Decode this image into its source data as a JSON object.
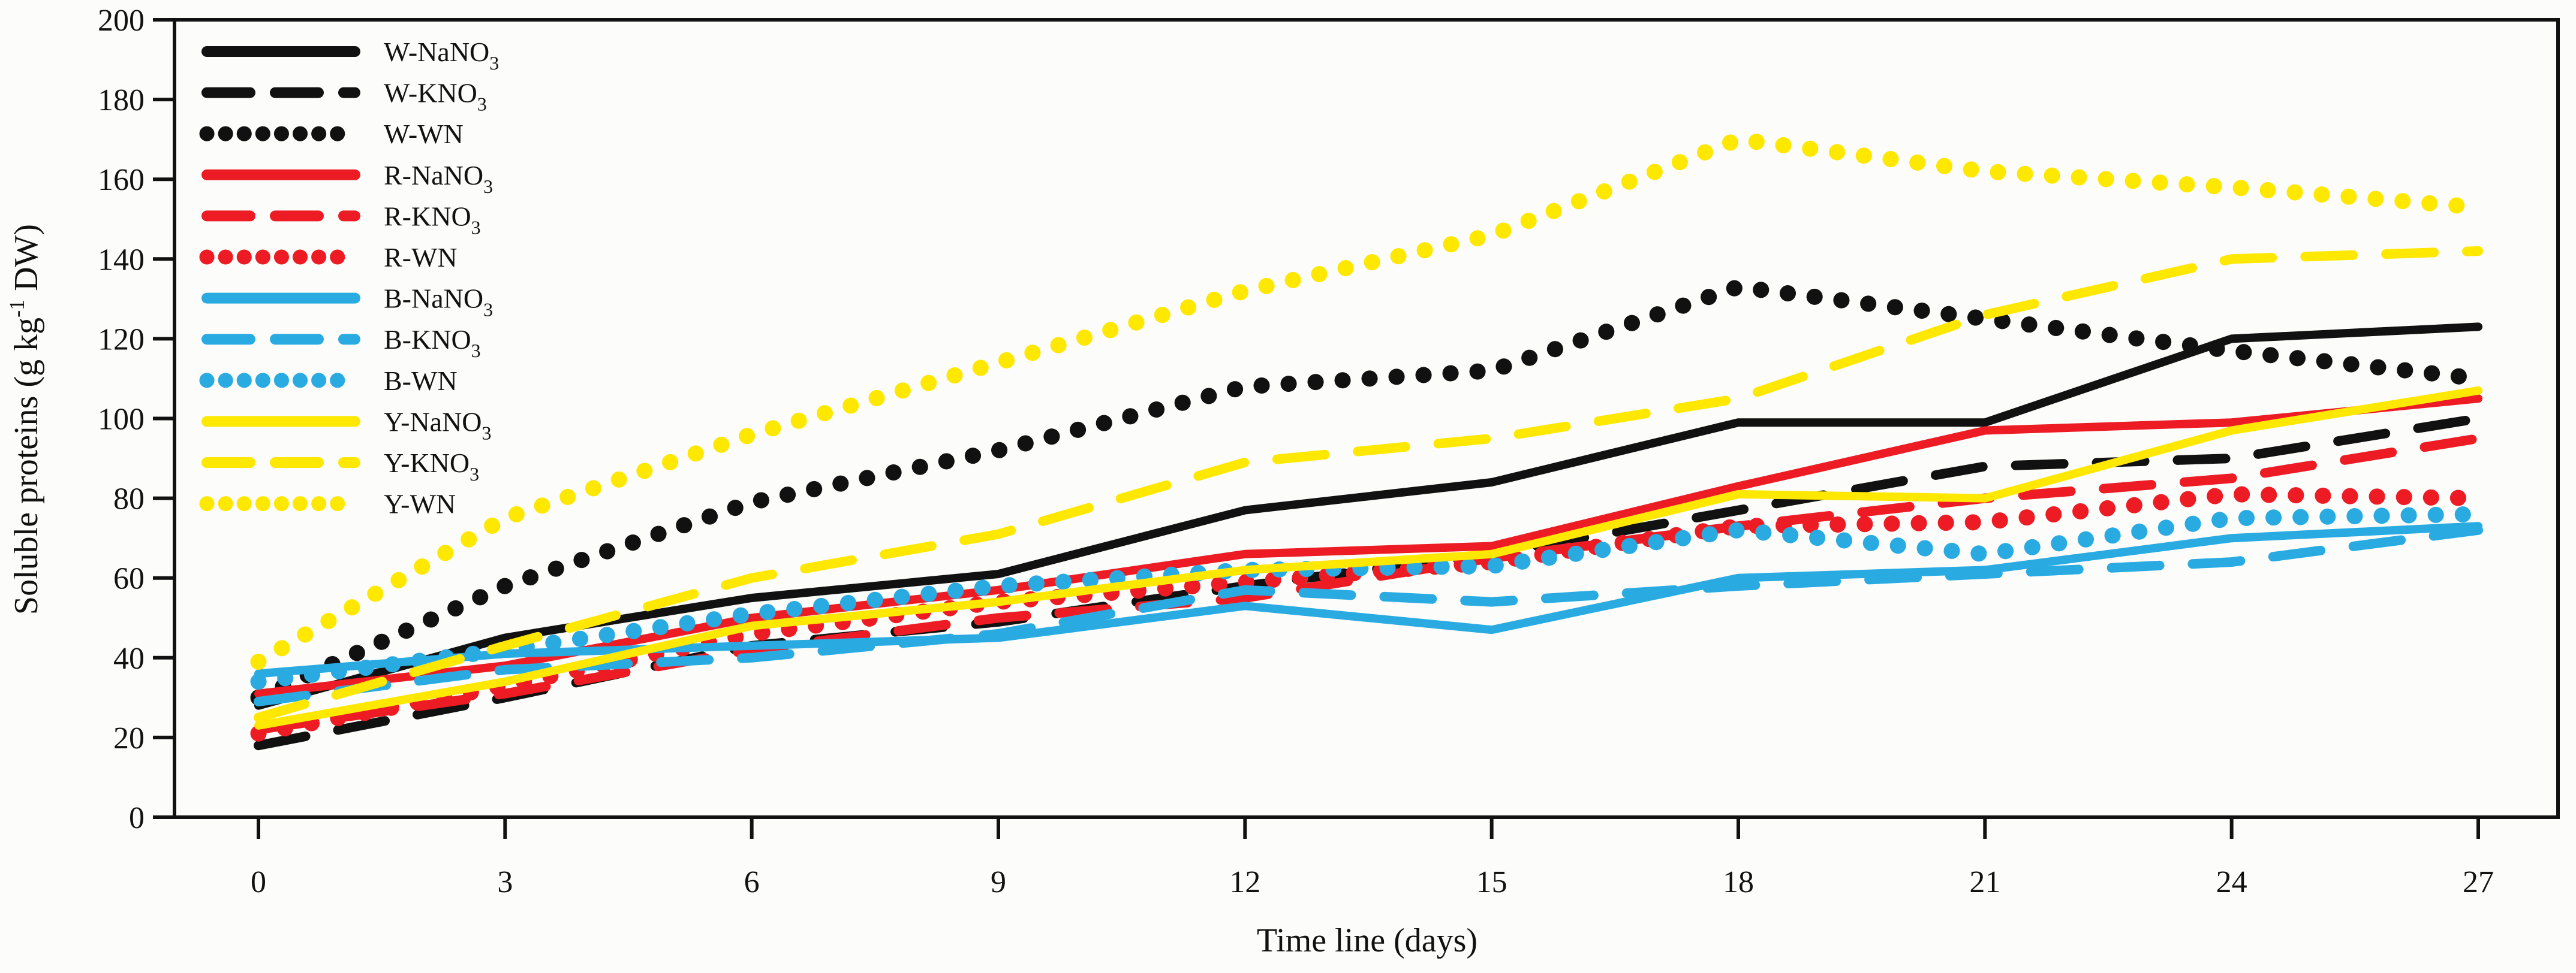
{
  "figure": {
    "xlabel": "Time line (days)",
    "ylabel_prefix": "Soluble proteins  (g kg",
    "ylabel_sup": "-1",
    "ylabel_suffix": " DW)"
  },
  "chart_data": {
    "type": "line",
    "title": "",
    "xlabel": "Time line (days)",
    "ylabel": "Soluble proteins (g kg-1 DW)",
    "x": [
      0,
      3,
      6,
      9,
      12,
      15,
      18,
      21,
      24,
      27
    ],
    "xticks": [
      "0",
      "3",
      "6",
      "9",
      "12",
      "15",
      "18",
      "21",
      "24",
      "27"
    ],
    "ylim": [
      0,
      200
    ],
    "ytick_step": 20,
    "yticks": [
      "0",
      "20",
      "40",
      "60",
      "80",
      "100",
      "120",
      "140",
      "160",
      "180",
      "200"
    ],
    "grid": false,
    "legend_position": "upper-left-inside",
    "colors": {
      "black": "#111111",
      "red": "#ed1c24",
      "blue": "#29abe2",
      "yellow": "#ffe800"
    },
    "series": [
      {
        "name": "W-NaNO3",
        "label_base": "W-NaNO",
        "label_sub": "3",
        "color": "#111111",
        "style": "solid",
        "values": [
          28,
          45,
          55,
          61,
          77,
          84,
          99,
          99,
          120,
          123
        ]
      },
      {
        "name": "W-KNO3",
        "label_base": "W-KNO",
        "label_sub": "3",
        "color": "#111111",
        "style": "dashed",
        "values": [
          18,
          30,
          43,
          49,
          58,
          66,
          77,
          88,
          90,
          100
        ]
      },
      {
        "name": "W-WN",
        "label_base": "W-WN",
        "label_sub": "",
        "color": "#111111",
        "style": "dotted",
        "values": [
          30,
          58,
          79,
          92,
          108,
          112,
          133,
          125,
          117,
          110
        ]
      },
      {
        "name": "R-NaNO3",
        "label_base": "R-NaNO",
        "label_sub": "3",
        "color": "#ed1c24",
        "style": "solid",
        "values": [
          31,
          38,
          50,
          57,
          66,
          68,
          83,
          97,
          99,
          105
        ]
      },
      {
        "name": "R-KNO3",
        "label_base": "R-KNO",
        "label_sub": "3",
        "color": "#ed1c24",
        "style": "dashed",
        "values": [
          22,
          31,
          42,
          50,
          55,
          65,
          73,
          80,
          85,
          95
        ]
      },
      {
        "name": "R-WN",
        "label_base": "R-WN",
        "label_sub": "",
        "color": "#ed1c24",
        "style": "dotted",
        "values": [
          21,
          33,
          46,
          54,
          59,
          64,
          73,
          74,
          81,
          80
        ]
      },
      {
        "name": "B-NaNO3",
        "label_base": "B-NaNO",
        "label_sub": "3",
        "color": "#29abe2",
        "style": "solid",
        "values": [
          36,
          41,
          43,
          45,
          53,
          47,
          60,
          62,
          70,
          73
        ]
      },
      {
        "name": "B-KNO3",
        "label_base": "B-KNO",
        "label_sub": "3",
        "color": "#29abe2",
        "style": "dashed",
        "values": [
          29,
          37,
          40,
          46,
          57,
          54,
          58,
          61,
          64,
          72
        ]
      },
      {
        "name": "B-WN",
        "label_base": "B-WN",
        "label_sub": "",
        "color": "#29abe2",
        "style": "dotted",
        "values": [
          34,
          42,
          51,
          58,
          62,
          63,
          72,
          66,
          75,
          76
        ]
      },
      {
        "name": "Y-NaNO3",
        "label_base": "Y-NaNO",
        "label_sub": "3",
        "color": "#ffe800",
        "style": "solid",
        "values": [
          23,
          34,
          48,
          54,
          62,
          66,
          81,
          80,
          97,
          107
        ]
      },
      {
        "name": "Y-KNO3",
        "label_base": "Y-KNO",
        "label_sub": "3",
        "color": "#ffe800",
        "style": "dashed",
        "values": [
          25,
          43,
          60,
          71,
          89,
          95,
          105,
          126,
          140,
          142
        ]
      },
      {
        "name": "Y-WN",
        "label_base": "Y-WN",
        "label_sub": "",
        "color": "#ffe800",
        "style": "dotted",
        "values": [
          39,
          75,
          96,
          114,
          132,
          146,
          170,
          162,
          158,
          153
        ]
      }
    ]
  }
}
